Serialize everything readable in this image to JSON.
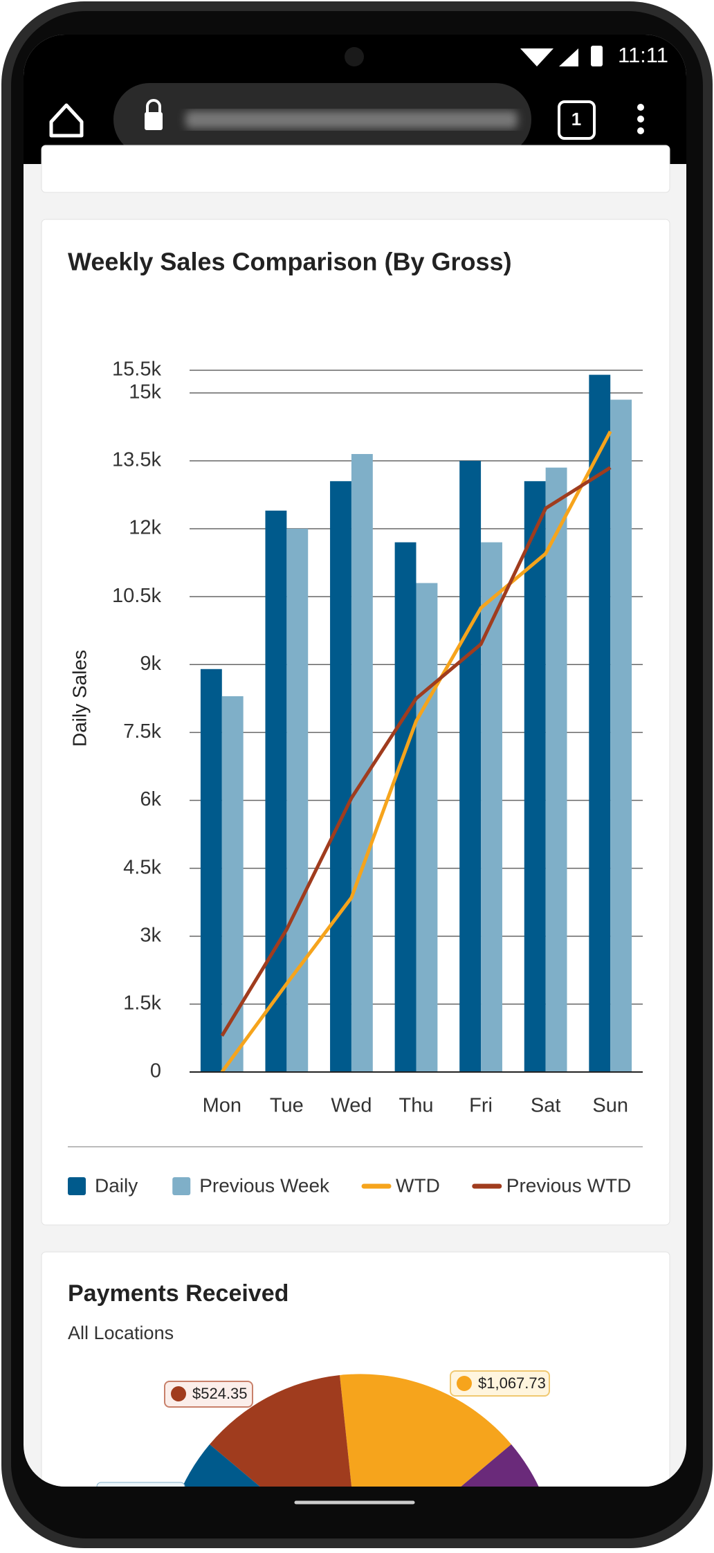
{
  "status_bar": {
    "time": "11:11"
  },
  "browser": {
    "tab_count": "1"
  },
  "chart_data": {
    "type": "bar",
    "title": "Weekly Sales Comparison (By Gross)",
    "y_label": "Daily Sales",
    "categories": [
      "Mon",
      "Tue",
      "Wed",
      "Thu",
      "Fri",
      "Sat",
      "Sun"
    ],
    "series": [
      {
        "name": "Daily",
        "color": "#005a8c",
        "values": [
          8900,
          12400,
          13050,
          11700,
          13500,
          13050,
          15400
        ]
      },
      {
        "name": "Previous Week",
        "color": "#7fafc8",
        "values": [
          8300,
          12000,
          13650,
          10800,
          11700,
          13350,
          14850
        ]
      },
      {
        "name": "WTD",
        "type": "line",
        "color": "#f6a41c",
        "values": [
          0,
          1950,
          3850,
          7750,
          10250,
          11450,
          14150
        ]
      },
      {
        "name": "Previous WTD",
        "type": "line",
        "color": "#a03c1e",
        "values": [
          800,
          3150,
          6050,
          8250,
          9450,
          12450,
          13350
        ]
      }
    ],
    "ylim": [
      0,
      15500
    ],
    "yticks": [
      0,
      {
        "value": 1500,
        "label": "1.5k"
      },
      {
        "value": 3000,
        "label": "3k"
      },
      {
        "value": 4500,
        "label": "4.5k"
      },
      {
        "value": 6000,
        "label": "6k"
      },
      {
        "value": 7500,
        "label": "7.5k"
      },
      {
        "value": 9000,
        "label": "9k"
      },
      {
        "value": 10500,
        "label": "10.5k"
      },
      {
        "value": 12000,
        "label": "12k"
      },
      {
        "value": 13500,
        "label": "13.5k"
      },
      {
        "value": 15000,
        "label": "15k"
      },
      {
        "value": 15500,
        "label": "15.5k"
      }
    ],
    "grid": true,
    "legend": "bottom"
  },
  "payments": {
    "title": "Payments Received",
    "subtitle": "All Locations",
    "labels": [
      "$524.35",
      "$1,067.73"
    ]
  }
}
